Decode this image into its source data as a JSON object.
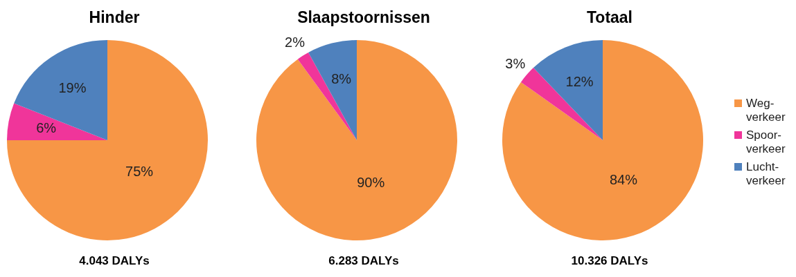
{
  "chart_data": [
    {
      "type": "pie",
      "title": "Hinder",
      "categories": [
        null,
        null,
        null
      ],
      "values": [
        75,
        6,
        19
      ],
      "colors": [
        "#f79646",
        "#f0359a",
        "#4f81bd"
      ],
      "value_labels": [
        "75%",
        "6%",
        "19%"
      ],
      "legend": false,
      "annotations": [
        "4.043 DALYs"
      ]
    },
    {
      "type": "pie",
      "title": "Slaapstoornissen",
      "categories": [
        null,
        null,
        null
      ],
      "values": [
        90,
        2,
        8
      ],
      "colors": [
        "#f79646",
        "#f0359a",
        "#4f81bd"
      ],
      "value_labels": [
        "90%",
        "2%",
        "8%"
      ],
      "legend": false,
      "annotations": [
        "6.283 DALYs"
      ]
    },
    {
      "type": "pie",
      "title": "Totaal",
      "categories": [
        "Weg-verkeer",
        "Spoor-verkeer",
        "Lucht-verkeer"
      ],
      "values": [
        84,
        3,
        12
      ],
      "colors": [
        "#f79646",
        "#f0359a",
        "#4f81bd"
      ],
      "value_labels": [
        "84%",
        "3%",
        "12%"
      ],
      "legend": "right",
      "annotations": [
        "10.326 DALYs"
      ]
    }
  ]
}
